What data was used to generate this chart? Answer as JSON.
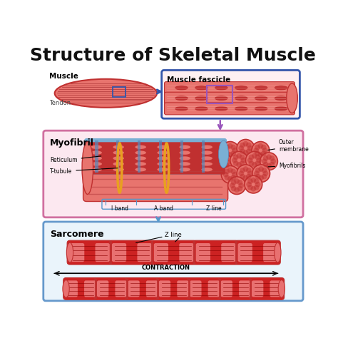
{
  "title": "Structure of Skeletal Muscle",
  "bg_color": "#ffffff",
  "title_fontsize": 18,
  "colors": {
    "muscle_salmon": "#E8746E",
    "muscle_light": "#F2A8A0",
    "muscle_dark": "#C03030",
    "muscle_stripe": "#B84040",
    "blue_bg": "#7AAFD4",
    "blue_medium": "#5588BB",
    "blue_dark": "#3355AA",
    "box_pink_border": "#D070A0",
    "box_blue_border": "#6699CC",
    "arrow_purple": "#9955BB",
    "arrow_blue": "#5599CC",
    "text_dark": "#111111",
    "gold": "#E8A020",
    "sarcomere_red": "#CC2222",
    "sarcomere_pink": "#E87070",
    "sarcomere_light": "#E8A0A0",
    "dark_red": "#8B0000",
    "pink_bg_myofibril": "#FCE8F0",
    "light_blue_bg": "#EAF4FB"
  },
  "labels": {
    "muscle": "Muscle",
    "tendon": "Tendon",
    "fascicle": "Muscle fascicle",
    "myofibril": "Myofibril",
    "outer_membrane": "Outer\nmembrane",
    "myofibrils": "Myofibrils",
    "reticulum": "Reticulum",
    "t_tubule": "T-tubule",
    "i_band": "I band",
    "a_band": "A band",
    "z_line": "Z line",
    "sarcomere": "Sarcomere",
    "z_line2": "Z line",
    "contraction": "CONTRACTION"
  }
}
